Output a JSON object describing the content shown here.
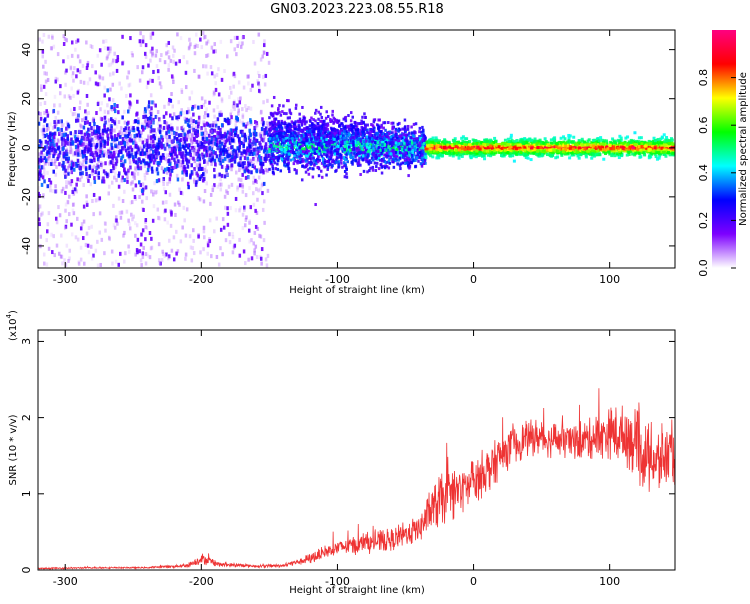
{
  "figure": {
    "title": "GN03.2023.223.08.55.R18"
  },
  "chart_data": [
    {
      "type": "heatmap",
      "title": "GN03.2023.223.08.55.R18",
      "xlabel": "Height of straight line (km)",
      "ylabel": "Frequency (Hz)",
      "xlim": [
        -320,
        148
      ],
      "ylim": [
        -49,
        48
      ],
      "xticks": [
        -300,
        -200,
        -100,
        0,
        100
      ],
      "yticks": [
        -40,
        -20,
        0,
        20,
        40
      ],
      "colorbar": {
        "label": "Normalized spectral amplitude",
        "range": [
          0.0,
          1.0
        ],
        "ticks": [
          0.0,
          0.2,
          0.4,
          0.6,
          0.8
        ],
        "tick_labels": [
          "0.0",
          "0.2",
          "0.4",
          "0.6",
          "0.8"
        ],
        "colormap": [
          "#ffffff",
          "#7d00ff",
          "#0000ff",
          "#00ffff",
          "#00ff00",
          "#ffff00",
          "#ff0000",
          "#ff0080"
        ]
      },
      "features": [
        {
          "x_range": [
            -320,
            -150
          ],
          "freq_spread_hz": [
            -48,
            47
          ],
          "amplitude": [
            0.05,
            0.35
          ]
        },
        {
          "x_range": [
            -150,
            -35
          ],
          "freq_spread_hz": [
            -12,
            15
          ],
          "amplitude": [
            0.15,
            0.6
          ]
        },
        {
          "x_range": [
            -35,
            148
          ],
          "freq_spread_hz": [
            -4,
            4
          ],
          "amplitude": [
            0.4,
            1.0
          ]
        }
      ]
    },
    {
      "type": "line",
      "xlabel": "Height of straight line (km)",
      "ylabel": "SNR (10 * v/v)",
      "y_multiplier": "(x10",
      "y_multiplier_exp": "4",
      "y_multiplier_close": ")",
      "xlim": [
        -320,
        148
      ],
      "ylim": [
        0,
        3.15
      ],
      "xticks": [
        -300,
        -200,
        -100,
        0,
        100
      ],
      "yticks": [
        0,
        1,
        2,
        3
      ],
      "color": "#ee3333",
      "series": [
        {
          "x": [
            -320,
            -280,
            -240,
            -210,
            -200,
            -185,
            -160,
            -140,
            -120,
            -100,
            -80,
            -60,
            -40,
            -25,
            -10,
            0,
            15,
            30,
            45,
            60,
            80,
            100,
            115,
            125,
            135,
            148
          ],
          "y": [
            0.02,
            0.03,
            0.03,
            0.06,
            0.15,
            0.07,
            0.05,
            0.06,
            0.15,
            0.3,
            0.35,
            0.4,
            0.55,
            0.9,
            1.05,
            1.15,
            1.4,
            1.65,
            1.75,
            1.7,
            1.7,
            1.8,
            1.75,
            1.5,
            1.4,
            1.55
          ],
          "noise": [
            0.01,
            0.01,
            0.01,
            0.03,
            0.08,
            0.03,
            0.02,
            0.02,
            0.07,
            0.12,
            0.15,
            0.15,
            0.2,
            0.35,
            0.35,
            0.35,
            0.3,
            0.25,
            0.25,
            0.25,
            0.25,
            0.35,
            0.45,
            0.5,
            0.5,
            0.45
          ]
        }
      ]
    }
  ]
}
